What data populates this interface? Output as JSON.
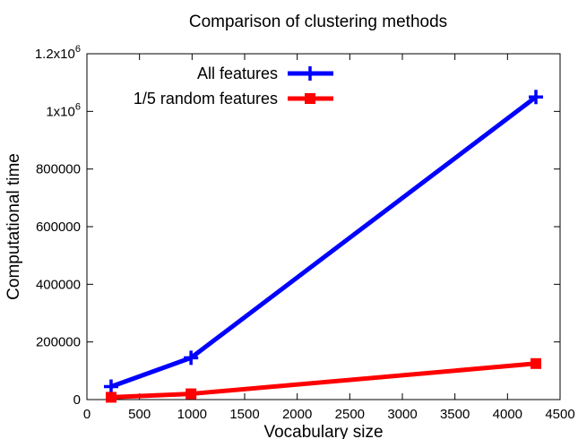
{
  "chart_data": {
    "type": "line",
    "title": "Comparison of clustering methods",
    "xlabel": "Vocabulary size",
    "ylabel": "Computational time",
    "xlim": [
      0,
      4500
    ],
    "ylim": [
      0,
      1200000
    ],
    "xticks": [
      "0",
      "500",
      "1000",
      "1500",
      "2000",
      "2500",
      "3000",
      "3500",
      "4000",
      "4500"
    ],
    "xtick_values": [
      0,
      500,
      1000,
      1500,
      2000,
      2500,
      3000,
      3500,
      4000,
      4500
    ],
    "yticks": [
      {
        "value": 0,
        "base": "0",
        "exp": ""
      },
      {
        "value": 200000,
        "base": "200000",
        "exp": ""
      },
      {
        "value": 400000,
        "base": "400000",
        "exp": ""
      },
      {
        "value": 600000,
        "base": "600000",
        "exp": ""
      },
      {
        "value": 800000,
        "base": "800000",
        "exp": ""
      },
      {
        "value": 1000000,
        "base": "1x10",
        "exp": "6"
      },
      {
        "value": 1200000,
        "base": "1.2x10",
        "exp": "6"
      }
    ],
    "grid": false,
    "legend_position": "top-left",
    "series": [
      {
        "name": "All features",
        "color": "#0000ff",
        "marker": "plus",
        "x": [
          230,
          990,
          4270
        ],
        "y": [
          45000,
          145000,
          1050000
        ]
      },
      {
        "name": "1/5 random features",
        "color": "#ff0000",
        "marker": "square",
        "x": [
          230,
          990,
          4270
        ],
        "y": [
          8000,
          20000,
          125000
        ]
      }
    ]
  }
}
